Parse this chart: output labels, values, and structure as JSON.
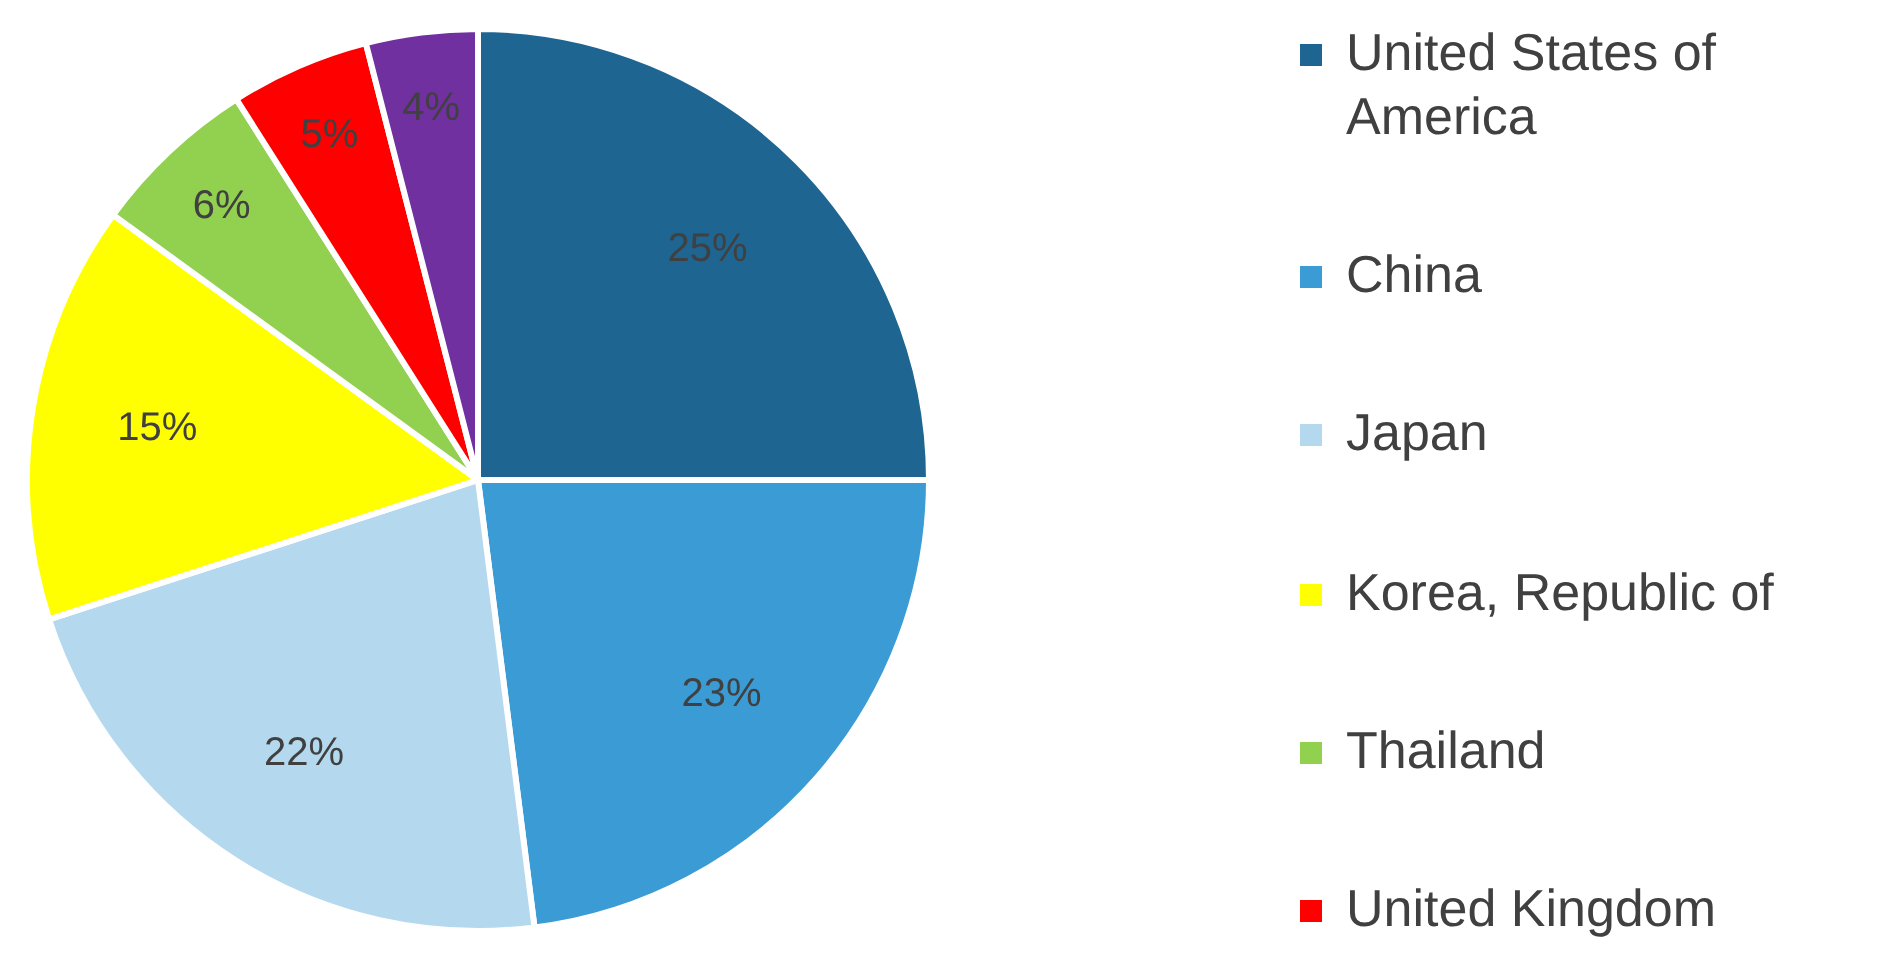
{
  "chart_data": {
    "type": "pie",
    "categories": [
      "United States of America",
      "China",
      "Japan",
      "Korea, Republic of",
      "Thailand",
      "United Kingdom",
      null
    ],
    "values": [
      25,
      23,
      22,
      15,
      6,
      5,
      4
    ],
    "colors": [
      "#1f6591",
      "#3a9bd5",
      "#b4d8ee",
      "#ffff00",
      "#92d050",
      "#ff0000",
      "#7030a0"
    ],
    "value_labels": [
      "25%",
      "23%",
      "22%",
      "15%",
      "6%",
      "5%",
      "4%"
    ],
    "legend": "right"
  }
}
